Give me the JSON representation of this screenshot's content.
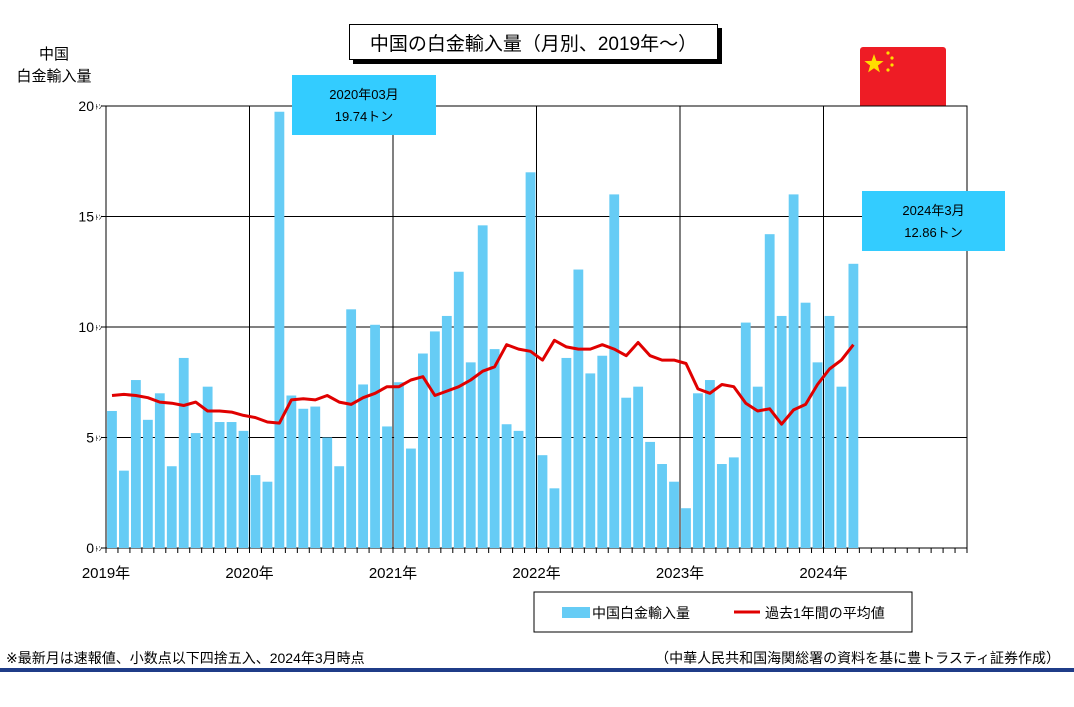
{
  "chart_data": {
    "type": "bar",
    "title": "中国の白金輸入量（月別、2019年～）",
    "ylabel_lines": [
      "中国",
      "白金輸入量"
    ],
    "ylim": [
      0,
      20
    ],
    "yticks": [
      {
        "value": 0,
        "label": "0"
      },
      {
        "value": 5,
        "label": "5"
      },
      {
        "value": 10,
        "label": "10"
      },
      {
        "value": 15,
        "label": "15"
      },
      {
        "value": 20,
        "label": "20"
      }
    ],
    "ytick_unit": "ﾄﾝ",
    "x_months": 72,
    "x_year_labels": [
      "2019年",
      "2020年",
      "2021年",
      "2022年",
      "2023年",
      "2024年"
    ],
    "grid": true,
    "series": [
      {
        "name": "中国白金輸入量",
        "kind": "bar",
        "color": "#66ccf5",
        "values": [
          6.2,
          3.5,
          7.6,
          5.8,
          7.0,
          3.7,
          8.6,
          5.2,
          7.3,
          5.7,
          5.7,
          5.3,
          3.3,
          3.0,
          19.74,
          6.9,
          6.3,
          6.4,
          5.0,
          3.7,
          10.8,
          7.4,
          10.1,
          5.5,
          7.5,
          4.5,
          8.8,
          9.8,
          10.5,
          12.5,
          8.4,
          14.6,
          9.0,
          5.6,
          5.3,
          17.0,
          4.2,
          2.7,
          8.6,
          12.6,
          7.9,
          8.7,
          16.0,
          6.8,
          7.3,
          4.8,
          3.8,
          3.0,
          1.8,
          7.0,
          7.6,
          3.8,
          4.1,
          10.2,
          7.3,
          14.2,
          10.5,
          16.0,
          11.1,
          8.4,
          10.5,
          7.3,
          12.86
        ]
      },
      {
        "name": "過去1年間の平均値",
        "kind": "line",
        "color": "#e00000",
        "values": [
          6.9,
          6.95,
          6.9,
          6.8,
          6.6,
          6.55,
          6.45,
          6.6,
          6.2,
          6.2,
          6.15,
          6.0,
          5.9,
          5.7,
          5.65,
          6.7,
          6.75,
          6.7,
          6.9,
          6.6,
          6.5,
          6.8,
          7.0,
          7.3,
          7.3,
          7.6,
          7.75,
          6.9,
          7.1,
          7.3,
          7.6,
          8.0,
          8.2,
          9.2,
          9.0,
          8.9,
          8.5,
          9.4,
          9.1,
          9.0,
          9.0,
          9.2,
          9.0,
          8.7,
          9.3,
          8.7,
          8.5,
          8.5,
          8.35,
          7.2,
          7.0,
          7.4,
          7.3,
          6.55,
          6.2,
          6.3,
          5.6,
          6.25,
          6.5,
          7.4,
          8.1,
          8.5,
          9.2
        ]
      }
    ],
    "annotations": [
      {
        "month_index": 14,
        "line1": "2020年03月",
        "line2": "19.74トン"
      },
      {
        "month_index": 62,
        "line1": "2024年3月",
        "line2": "12.86トン"
      }
    ],
    "legend": {
      "position": "bottom-right"
    }
  },
  "footnote": "※最新月は速報値、小数点以下四捨五入、2024年3月時点",
  "source": "（中華人民共和国海関総署の資料を基に豊トラスティ証券作成）",
  "flag": {
    "name": "china-flag-icon",
    "color": "#ee1c25",
    "star_color": "#ffde00"
  }
}
